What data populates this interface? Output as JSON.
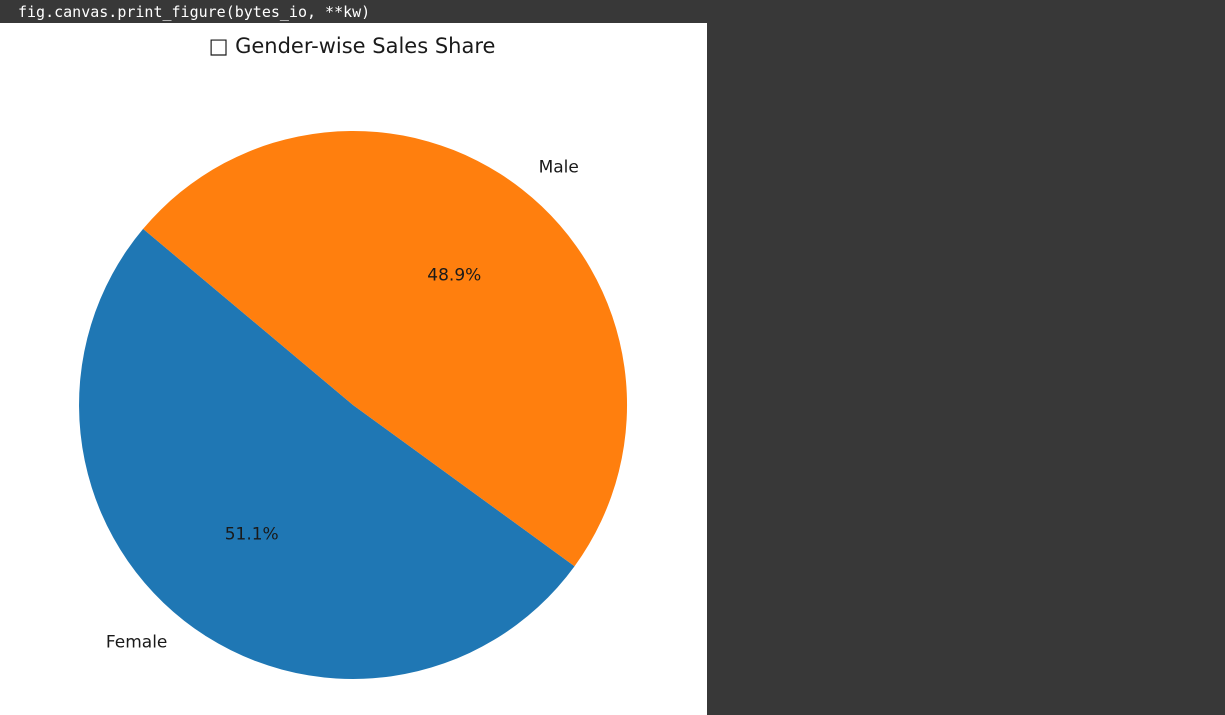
{
  "output": {
    "code_line": "fig.canvas.print_figure(bytes_io, **kw)"
  },
  "chart_data": {
    "type": "pie",
    "title": "□ Gender-wise Sales Share",
    "startangle_deg": 140,
    "counterclock": true,
    "slices": [
      {
        "label": "Female",
        "value": 51.1,
        "pct_label": "51.1%",
        "color": "#1f77b4"
      },
      {
        "label": "Male",
        "value": 48.9,
        "pct_label": "48.9%",
        "color": "#ff7f0e"
      }
    ]
  }
}
